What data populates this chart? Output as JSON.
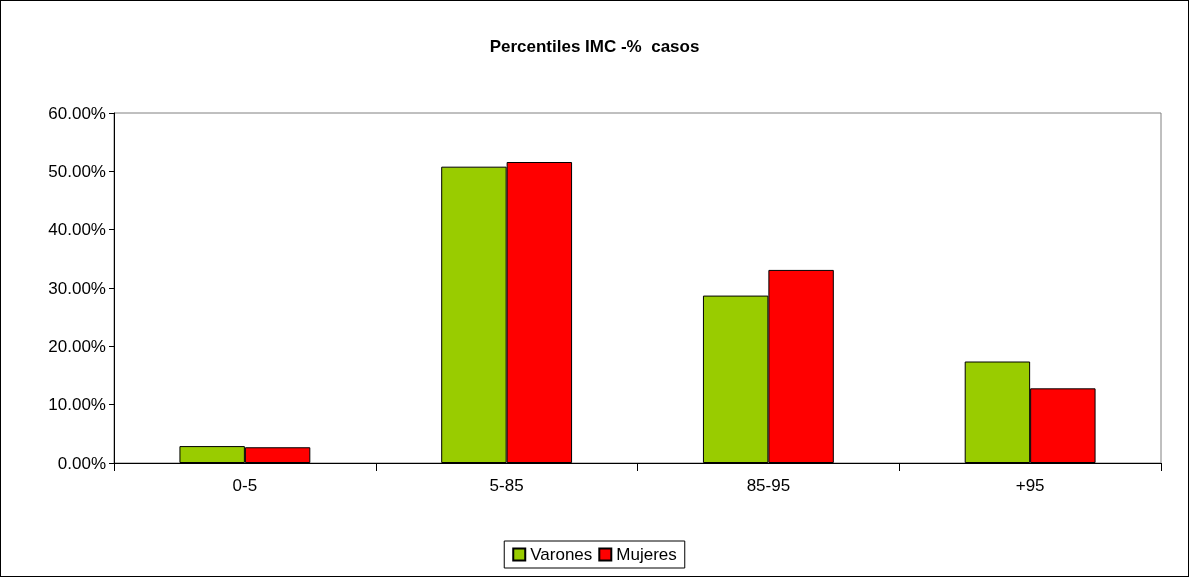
{
  "chart_data": {
    "type": "bar",
    "title": "Percentiles IMC -%  casos",
    "categories": [
      "0-5",
      "5-85",
      "85-95",
      "+95"
    ],
    "series": [
      {
        "name": "Varones",
        "color": "#99cc00",
        "values": [
          2.9,
          50.8,
          28.7,
          17.4
        ]
      },
      {
        "name": "Mujeres",
        "color": "#ff0000",
        "values": [
          2.7,
          51.6,
          33.1,
          12.8
        ]
      }
    ],
    "ylim": [
      0,
      60
    ],
    "yticks": [
      {
        "value": 0,
        "label": "0.00%"
      },
      {
        "value": 10,
        "label": "10.00%"
      },
      {
        "value": 20,
        "label": "20.00%"
      },
      {
        "value": 30,
        "label": "30.00%"
      },
      {
        "value": 40,
        "label": "40.00%"
      },
      {
        "value": 50,
        "label": "50.00%"
      },
      {
        "value": 60,
        "label": "60.00%"
      }
    ],
    "grid": false,
    "legend": "bottom"
  }
}
